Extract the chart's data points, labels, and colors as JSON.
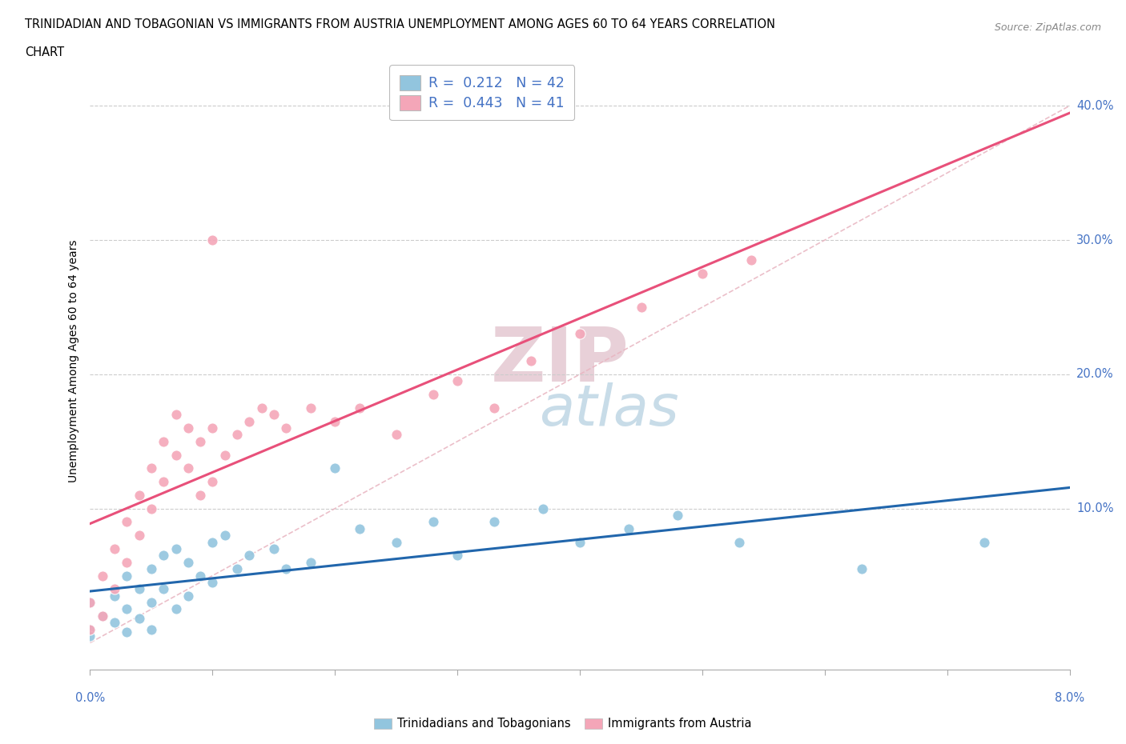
{
  "title_line1": "TRINIDADIAN AND TOBAGONIAN VS IMMIGRANTS FROM AUSTRIA UNEMPLOYMENT AMONG AGES 60 TO 64 YEARS CORRELATION",
  "title_line2": "CHART",
  "source_text": "Source: ZipAtlas.com",
  "ylabel": "Unemployment Among Ages 60 to 64 years",
  "ytick_vals": [
    0.0,
    0.1,
    0.2,
    0.3,
    0.4
  ],
  "ytick_labels": [
    "",
    "10.0%",
    "20.0%",
    "30.0%",
    "40.0%"
  ],
  "xlim": [
    0.0,
    0.08
  ],
  "ylim": [
    -0.02,
    0.44
  ],
  "blue_color": "#92c5de",
  "pink_color": "#f4a6b8",
  "blue_line_color": "#2166ac",
  "pink_line_color": "#e8507a",
  "diagonal_line_color": "#e8b4c0",
  "watermark_zip_color": "#e8d0d8",
  "watermark_atlas_color": "#c8dce8",
  "blue_scatter_x": [
    0.0,
    0.0,
    0.0,
    0.001,
    0.002,
    0.002,
    0.003,
    0.003,
    0.003,
    0.004,
    0.004,
    0.005,
    0.005,
    0.005,
    0.006,
    0.006,
    0.007,
    0.007,
    0.008,
    0.008,
    0.009,
    0.01,
    0.01,
    0.011,
    0.012,
    0.013,
    0.015,
    0.016,
    0.018,
    0.02,
    0.022,
    0.025,
    0.028,
    0.03,
    0.033,
    0.037,
    0.04,
    0.044,
    0.048,
    0.053,
    0.063,
    0.073
  ],
  "blue_scatter_y": [
    0.03,
    0.01,
    0.005,
    0.02,
    0.035,
    0.015,
    0.05,
    0.025,
    0.008,
    0.04,
    0.018,
    0.055,
    0.03,
    0.01,
    0.065,
    0.04,
    0.07,
    0.025,
    0.06,
    0.035,
    0.05,
    0.075,
    0.045,
    0.08,
    0.055,
    0.065,
    0.07,
    0.055,
    0.06,
    0.13,
    0.085,
    0.075,
    0.09,
    0.065,
    0.09,
    0.1,
    0.075,
    0.085,
    0.095,
    0.075,
    0.055,
    0.075
  ],
  "pink_scatter_x": [
    0.0,
    0.0,
    0.001,
    0.001,
    0.002,
    0.002,
    0.003,
    0.003,
    0.004,
    0.004,
    0.005,
    0.005,
    0.006,
    0.006,
    0.007,
    0.007,
    0.008,
    0.008,
    0.009,
    0.009,
    0.01,
    0.01,
    0.011,
    0.012,
    0.013,
    0.014,
    0.015,
    0.016,
    0.018,
    0.02,
    0.022,
    0.025,
    0.028,
    0.03,
    0.033,
    0.036,
    0.04,
    0.045,
    0.05,
    0.054,
    0.01
  ],
  "pink_scatter_y": [
    0.03,
    0.01,
    0.05,
    0.02,
    0.07,
    0.04,
    0.09,
    0.06,
    0.11,
    0.08,
    0.13,
    0.1,
    0.15,
    0.12,
    0.17,
    0.14,
    0.16,
    0.13,
    0.15,
    0.11,
    0.16,
    0.12,
    0.14,
    0.155,
    0.165,
    0.175,
    0.17,
    0.16,
    0.175,
    0.165,
    0.175,
    0.155,
    0.185,
    0.195,
    0.175,
    0.21,
    0.23,
    0.25,
    0.275,
    0.285,
    0.3
  ],
  "background_color": "#ffffff",
  "grid_color": "#cccccc"
}
